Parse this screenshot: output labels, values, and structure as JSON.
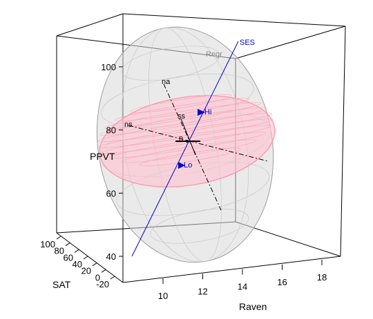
{
  "chart_data": {
    "type": "scatter",
    "title": "",
    "axes": {
      "x": {
        "label": "Raven",
        "ticks": [
          "10",
          "12",
          "14",
          "16",
          "18"
        ]
      },
      "y": {
        "label": "PPVT",
        "ticks": [
          "40",
          "60",
          "80",
          "100"
        ]
      },
      "z": {
        "label": "SAT",
        "ticks": [
          "100",
          "80",
          "60",
          "40",
          "20",
          "0",
          "-20"
        ]
      }
    },
    "ellipsoids": [
      {
        "name": "",
        "color": "#b8b8b8"
      },
      {
        "name": "",
        "color": "#ff9fb2"
      }
    ],
    "vector_labels": [
      {
        "text": "SES",
        "color": "#0000cc"
      },
      {
        "text": "Regr",
        "color": "#8c8c8c"
      },
      {
        "text": "na",
        "color": "#000000"
      },
      {
        "text": "ss",
        "color": "#000000"
      },
      {
        "text": "Hi",
        "color": "#0000cc"
      },
      {
        "text": "Lo",
        "color": "#0000cc"
      },
      {
        "text": "ns",
        "color": "#000000"
      },
      {
        "text": "n",
        "color": "#000000"
      }
    ],
    "grid": false,
    "legend": "none"
  }
}
